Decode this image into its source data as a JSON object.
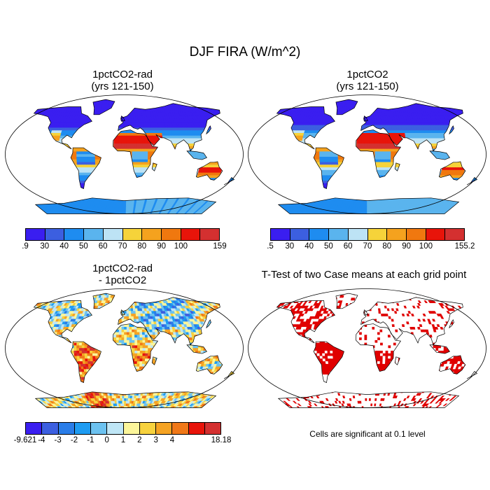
{
  "main_title": "DJF FIRA (W/m^2)",
  "panels": [
    {
      "id": "p1",
      "title_line1": "1pctCO2-rad",
      "title_line2": "(yrs 121-150)"
    },
    {
      "id": "p2",
      "title_line1": "1pctCO2",
      "title_line2": "(yrs 121-150)"
    },
    {
      "id": "p3",
      "title_line1": "1pctCO2-rad",
      "title_line2": "- 1pctCO2"
    },
    {
      "id": "p4",
      "title_line1": "T-Test of two Case means at each grid point",
      "title_line2": ""
    }
  ],
  "colorbars": {
    "cb1": {
      "labels": [
        ".9",
        "30",
        "40",
        "50",
        "60",
        "70",
        "80",
        "90",
        "100",
        "159"
      ],
      "colors": [
        "#3a1ef0",
        "#3c5fe0",
        "#1e8cf0",
        "#5ab4ee",
        "#bde3f5",
        "#f6d33a",
        "#f5a21e",
        "#f0780f",
        "#e8140a",
        "#d43030"
      ]
    },
    "cb2": {
      "labels": [
        ".5",
        "30",
        "40",
        "50",
        "60",
        "70",
        "80",
        "90",
        "100",
        "155.2"
      ],
      "colors": [
        "#3a1ef0",
        "#3c5fe0",
        "#1e8cf0",
        "#5ab4ee",
        "#bde3f5",
        "#f6d33a",
        "#f5a21e",
        "#f0780f",
        "#e8140a",
        "#d43030"
      ]
    },
    "cb3": {
      "labels": [
        "-9.621",
        "-4",
        "-3",
        "-2",
        "-1",
        "0",
        "1",
        "2",
        "3",
        "4",
        "18.18"
      ],
      "colors": [
        "#3a1ef0",
        "#3c5fe0",
        "#2a7de8",
        "#1e9cf2",
        "#6cc2f0",
        "#bfe6f6",
        "#fbf59a",
        "#f7d23e",
        "#f5a323",
        "#f07818",
        "#e8140a",
        "#d43030"
      ]
    }
  },
  "significance_note": "Cells are significant at 0.1 level",
  "significance_color": "#e00000"
}
